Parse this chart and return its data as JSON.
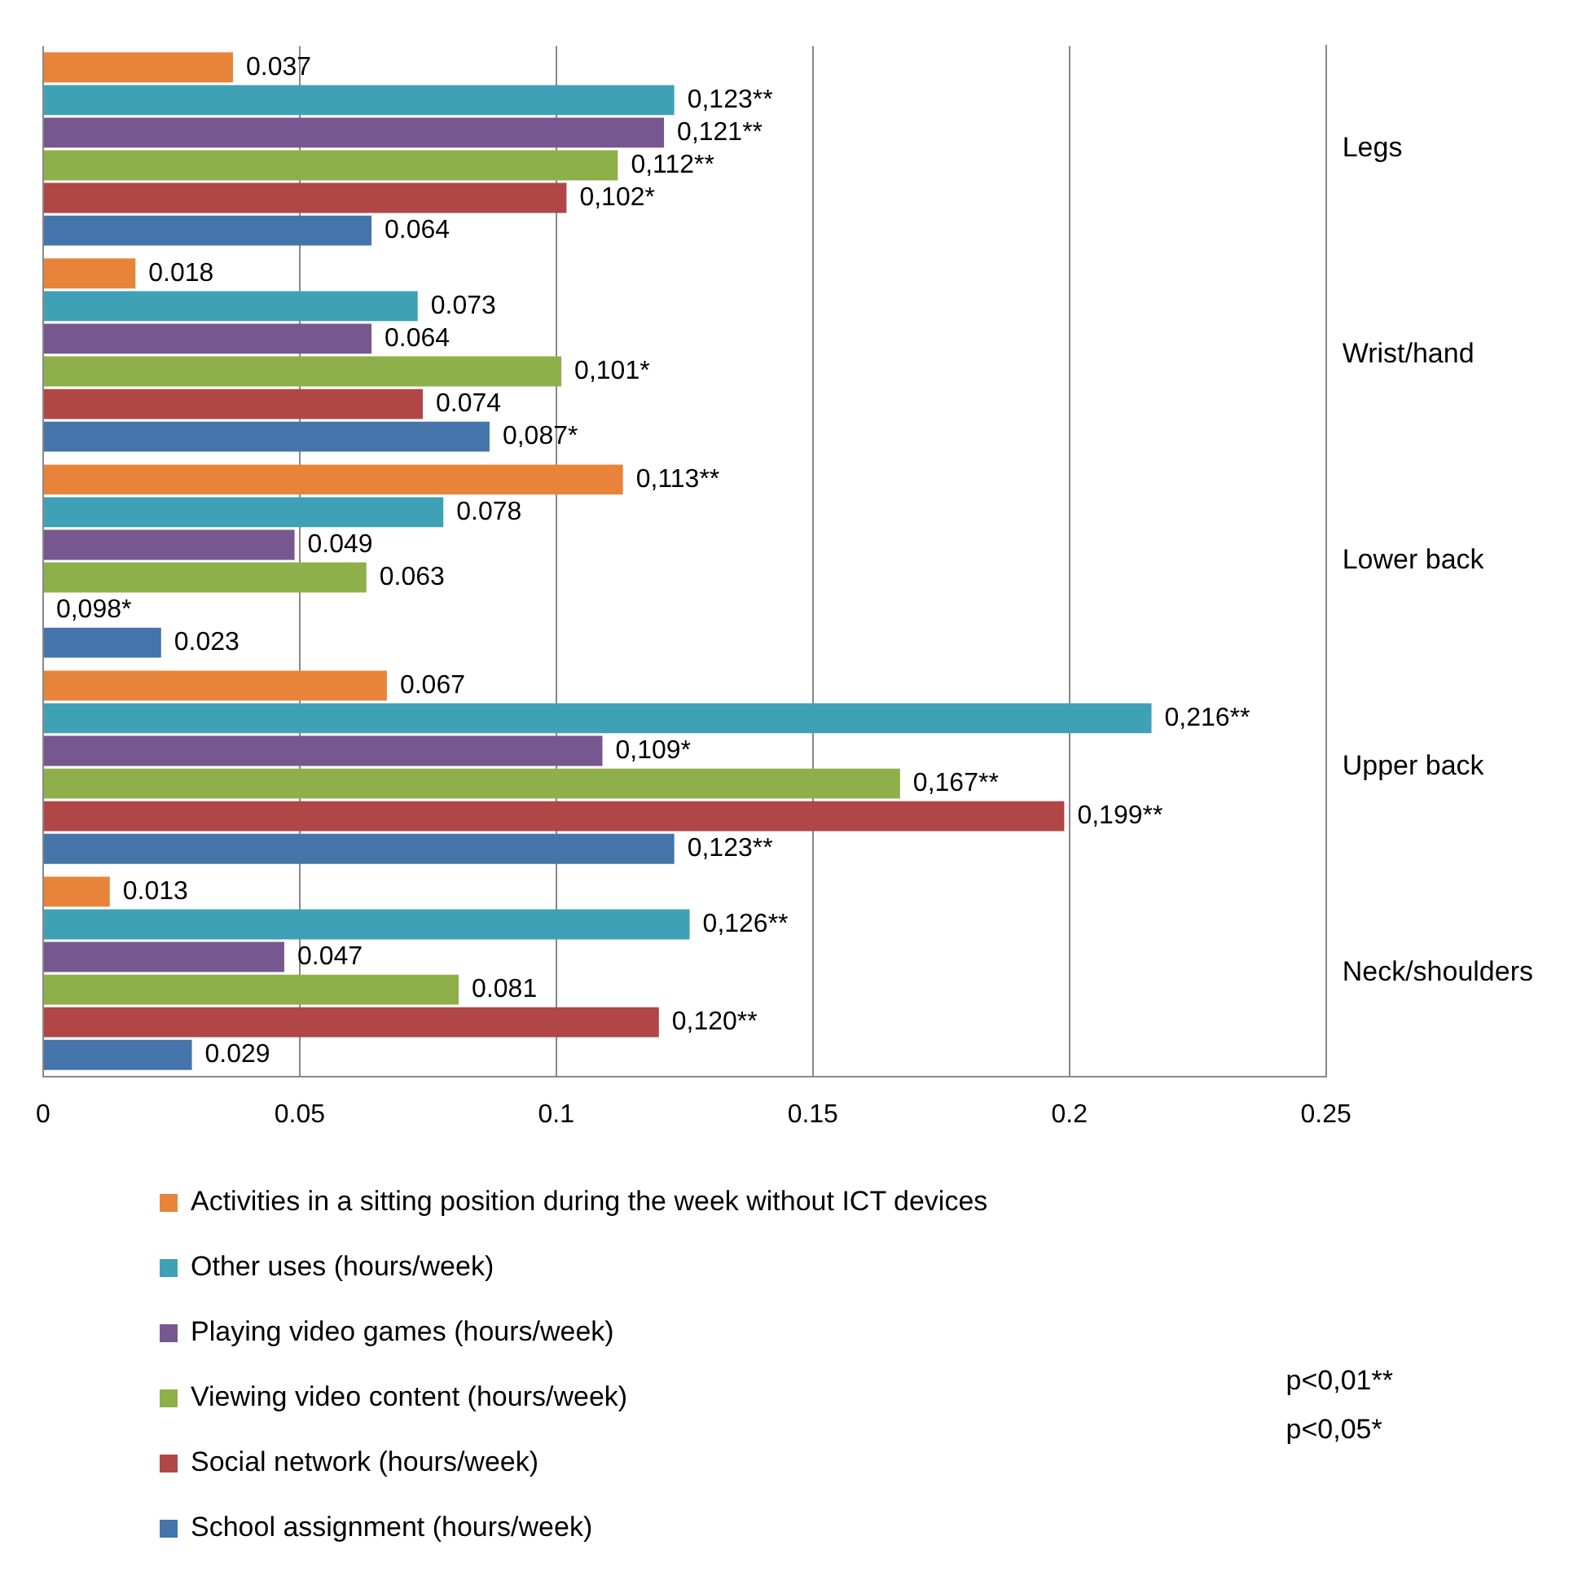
{
  "chart_data": {
    "type": "bar",
    "orientation": "horizontal",
    "categories": [
      "Legs",
      "Wrist/hand",
      "Lower back",
      "Upper back",
      "Neck/shoulders"
    ],
    "series": [
      {
        "name": "Activities in a sitting position during the week without ICT devices",
        "color": "#e8843a",
        "values": [
          0.037,
          0.018,
          0.113,
          0.067,
          0.013
        ],
        "value_labels": [
          "0.037",
          "0.018",
          "0,113**",
          "0.067",
          "0.013"
        ]
      },
      {
        "name": "Other uses (hours/week)",
        "color": "#3fa1b5",
        "values": [
          0.123,
          0.073,
          0.078,
          0.216,
          0.126
        ],
        "value_labels": [
          "0,123**",
          "0.073",
          "0.078",
          "0,216**",
          "0,126**"
        ]
      },
      {
        "name": "Playing video games (hours/week)",
        "color": "#76578f",
        "values": [
          0.121,
          0.064,
          0.049,
          0.109,
          0.047
        ],
        "value_labels": [
          "0,121**",
          "0.064",
          "0.049",
          "0,109*",
          "0.047"
        ]
      },
      {
        "name": "Viewing video content (hours/week)",
        "color": "#8eb04a",
        "values": [
          0.112,
          0.101,
          0.063,
          0.167,
          0.081
        ],
        "value_labels": [
          "0,112**",
          "0,101*",
          "0.063",
          "0,167**",
          "0.081"
        ]
      },
      {
        "name": "Social network (hours/week)",
        "color": "#b04646",
        "values": [
          0.102,
          0.074,
          null,
          0.199,
          0.12
        ],
        "value_labels": [
          "0,102*",
          "0.074",
          "0,098*",
          "0,199**",
          "0,120**"
        ]
      },
      {
        "name": "School assignment (hours/week)",
        "color": "#4474aa",
        "values": [
          0.064,
          0.087,
          0.023,
          0.123,
          0.029
        ],
        "value_labels": [
          "0.064",
          "0,087*",
          "0.023",
          "0,123**",
          "0.029"
        ]
      }
    ],
    "xlim": [
      0,
      0.25
    ],
    "xticks": [
      0,
      0.05,
      0.1,
      0.15,
      0.2,
      0.25
    ],
    "grid": "x",
    "legend": "bottom",
    "annotations": [
      "p<0,01**",
      "p<0,05*"
    ]
  }
}
